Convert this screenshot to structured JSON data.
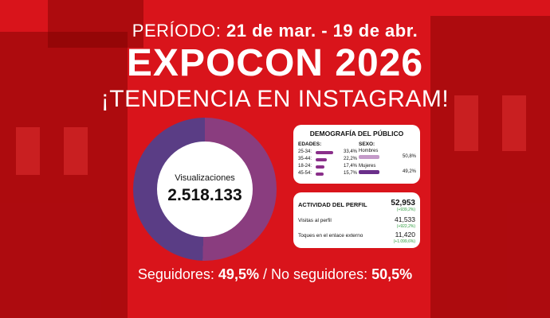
{
  "header": {
    "period_label": "PERÍODO:",
    "period_dates": "21 de mar. - 19 de abr.",
    "title": "EXPOCON 2026",
    "subtitle": "¡TENDENCIA EN INSTAGRAM!"
  },
  "views": {
    "label": "Visualizaciones",
    "value": "2.518.133"
  },
  "demographics": {
    "title": "DEMOGRAFÍA DEL PÚBLICO",
    "ages_label": "EDADES:",
    "sex_label": "SEXO:",
    "ages": [
      {
        "range": "25-34:",
        "value": "33,4%",
        "fraction": 0.334
      },
      {
        "range": "35-44:",
        "value": "22,2%",
        "fraction": 0.222
      },
      {
        "range": "18-24:",
        "value": "17,4%",
        "fraction": 0.174
      },
      {
        "range": "45-54:",
        "value": "15,7%",
        "fraction": 0.157
      }
    ],
    "sex": [
      {
        "label": "Hombres",
        "value": "50,8%",
        "fraction": 0.508,
        "color": "#c49ac9"
      },
      {
        "label": "Mujeres",
        "value": "49,2%",
        "fraction": 0.492,
        "color": "#6a2f8a"
      }
    ]
  },
  "activity": {
    "title": "ACTIVIDAD DEL PERFIL",
    "total": "52,953",
    "total_change": "(+939,2%)",
    "rows": [
      {
        "label": "Visitas al perfil",
        "value": "41,533",
        "change": "(+922,2%)"
      },
      {
        "label": "Toques en el enlace externo",
        "value": "11,420",
        "change": "(+1.099,6%)"
      }
    ]
  },
  "audience": {
    "followers_label": "Seguidores:",
    "followers_value": "49,5%",
    "separator": "/",
    "non_followers_label": "No seguidores:",
    "non_followers_value": "50,5%"
  },
  "colors": {
    "background": "#d9141b",
    "followers_arc": "#5a3d85",
    "non_followers_arc": "#8a3d7f"
  }
}
